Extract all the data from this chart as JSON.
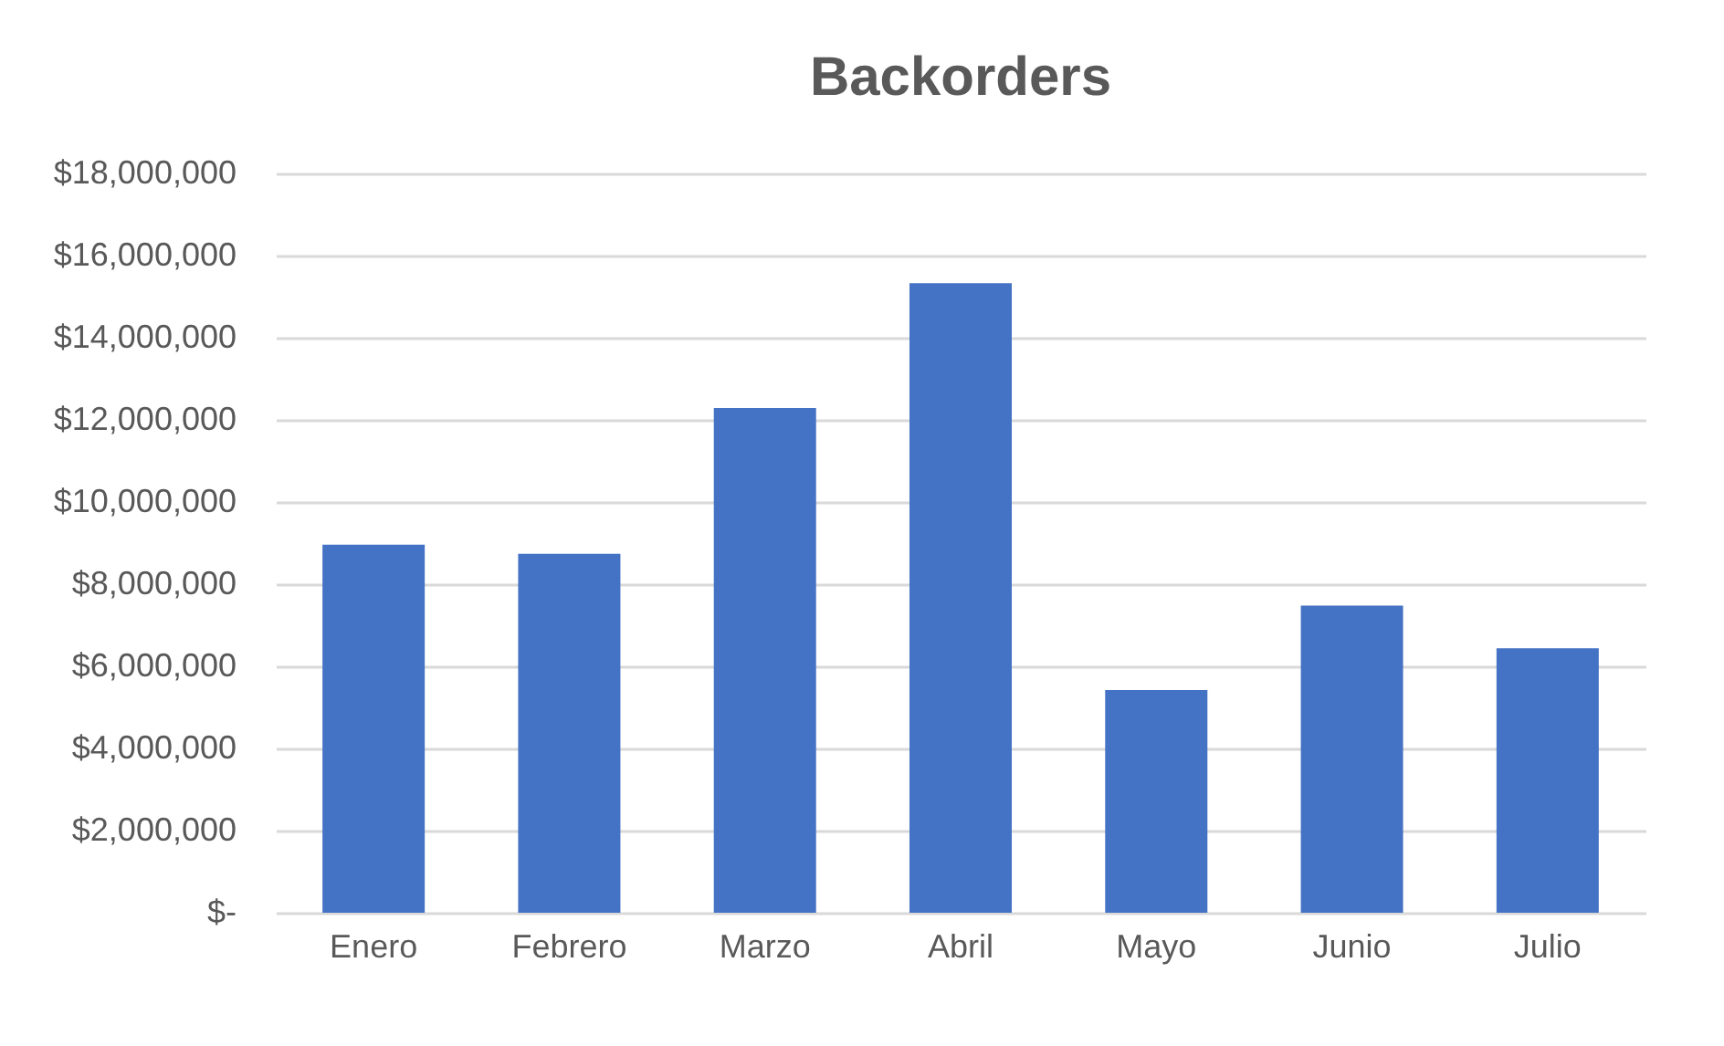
{
  "chart_data": {
    "type": "bar",
    "title": "Backorders",
    "categories": [
      "Enero",
      "Febrero",
      "Marzo",
      "Abril",
      "Mayo",
      "Junio",
      "Julio"
    ],
    "values": [
      8960000,
      8740000,
      12290000,
      15330000,
      5420000,
      7480000,
      6440000
    ],
    "color": "#4472c4",
    "ylim": [
      0,
      18000000
    ],
    "yticks": [
      {
        "value": 0,
        "label": "$-"
      },
      {
        "value": 2000000,
        "label": "$2,000,000"
      },
      {
        "value": 4000000,
        "label": "$4,000,000"
      },
      {
        "value": 6000000,
        "label": "$6,000,000"
      },
      {
        "value": 8000000,
        "label": "$8,000,000"
      },
      {
        "value": 10000000,
        "label": "$10,000,000"
      },
      {
        "value": 12000000,
        "label": "$12,000,000"
      },
      {
        "value": 14000000,
        "label": "$14,000,000"
      },
      {
        "value": 16000000,
        "label": "$16,000,000"
      },
      {
        "value": 18000000,
        "label": "$18,000,000"
      }
    ],
    "grid": "y"
  }
}
